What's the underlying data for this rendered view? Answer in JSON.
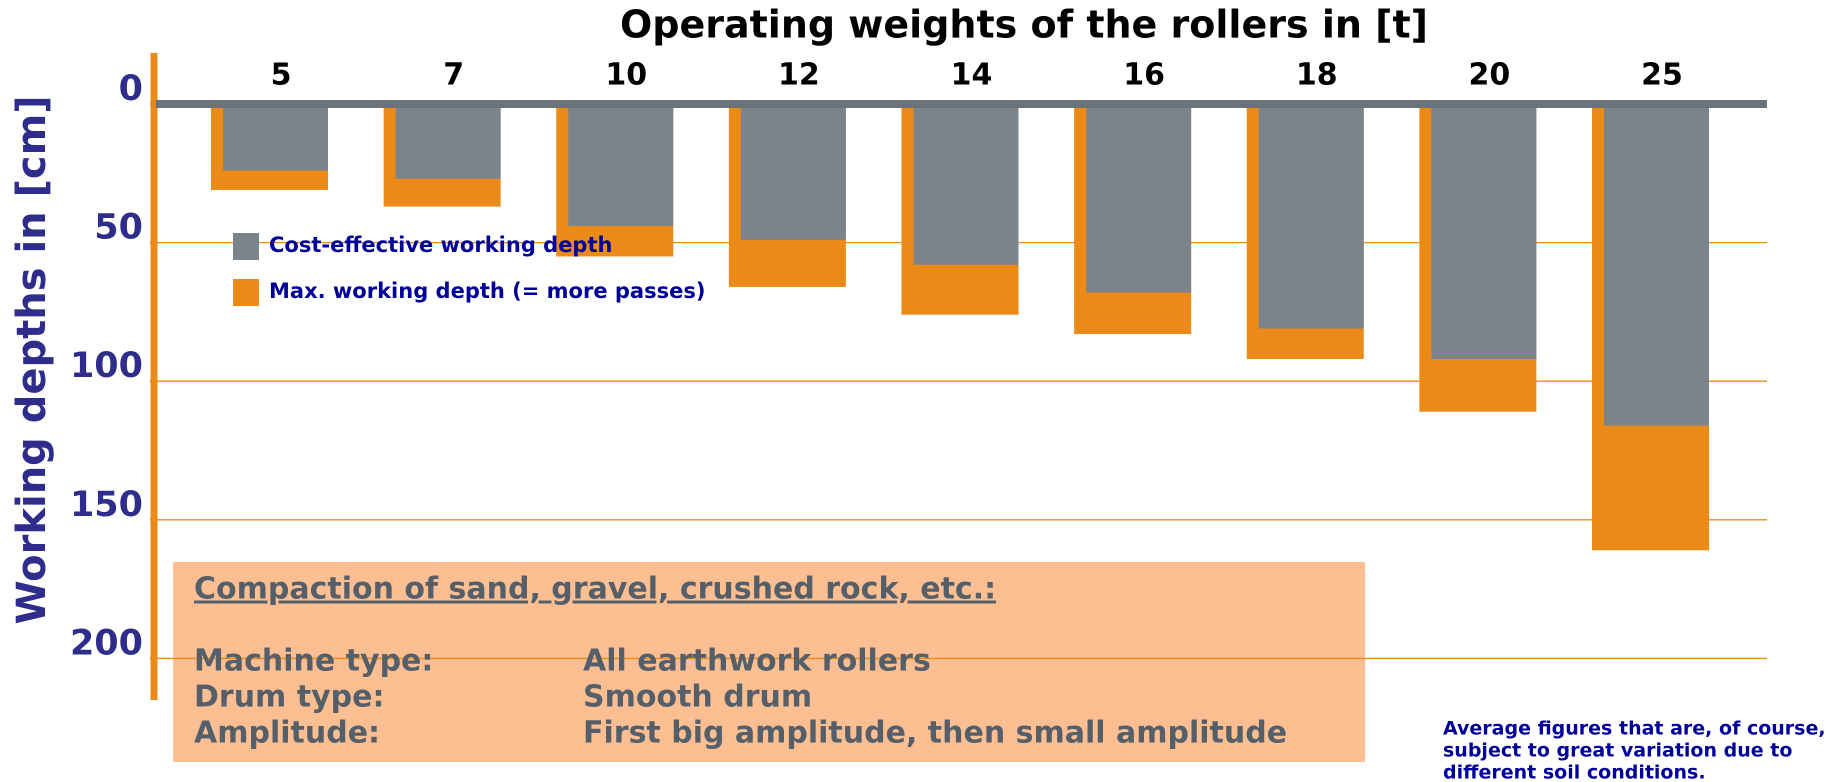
{
  "chart_data": {
    "type": "bar",
    "title": "Operating weights of the rollers in [t]",
    "y_label": "Working depths in [cm]",
    "categories": [
      "5",
      "7",
      "10",
      "12",
      "14",
      "16",
      "18",
      "20",
      "25"
    ],
    "series": [
      {
        "name": "Cost-effective working depth",
        "color": "#7c848b",
        "values": [
          24,
          27,
          44,
          49,
          58,
          68,
          81,
          92,
          116
        ]
      },
      {
        "name": "Max. working depth (= more passes)",
        "color": "#ec8a17",
        "values": [
          31,
          37,
          55,
          66,
          76,
          83,
          92,
          111,
          161
        ]
      }
    ],
    "ylim": [
      0,
      215
    ],
    "yticks": [
      0,
      50,
      100,
      150,
      200
    ],
    "y_inverted": true,
    "grid": true,
    "grid_color": "#ec8a17",
    "info_box": {
      "heading": "Compaction of sand, gravel, crushed rock, etc.:",
      "rows": [
        [
          "Machine type:",
          "All earthwork rollers"
        ],
        [
          "Drum type:",
          "Smooth drum"
        ],
        [
          "Amplitude:",
          "First big amplitude, then small amplitude"
        ]
      ]
    },
    "note": [
      "Average figures that are, of course,",
      "subject to great variation due to",
      "different soil conditions."
    ]
  }
}
